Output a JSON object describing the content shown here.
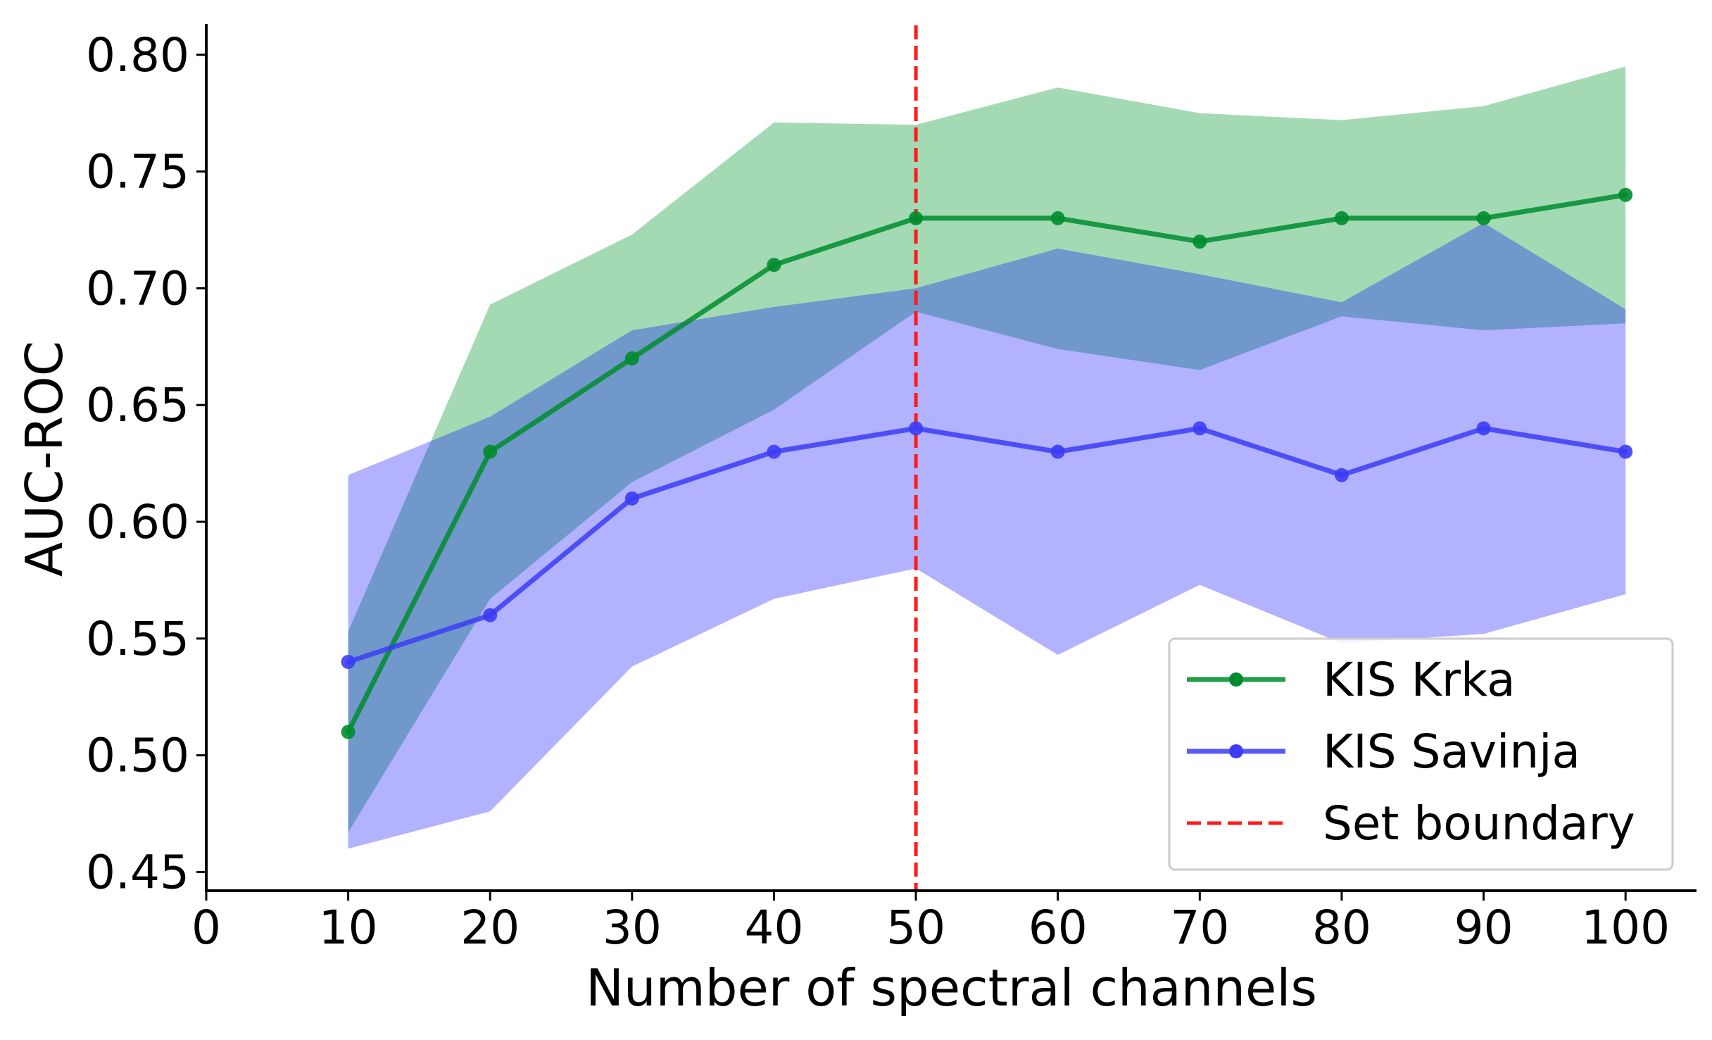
{
  "chart_data": {
    "type": "line",
    "title": "",
    "xlabel": "Number of spectral channels",
    "ylabel": "AUC-ROC",
    "xlim": [
      0,
      105
    ],
    "ylim": [
      0.442,
      0.812
    ],
    "xticks": [
      0,
      10,
      20,
      30,
      40,
      50,
      60,
      70,
      80,
      90,
      100
    ],
    "xtick_labels": [
      "0",
      "10",
      "20",
      "30",
      "40",
      "50",
      "60",
      "70",
      "80",
      "90",
      "100"
    ],
    "yticks": [
      0.45,
      0.5,
      0.55,
      0.6,
      0.65,
      0.7,
      0.75,
      0.8
    ],
    "ytick_labels": [
      "0.45",
      "0.50",
      "0.55",
      "0.60",
      "0.65",
      "0.70",
      "0.75",
      "0.80"
    ],
    "x": [
      10,
      20,
      30,
      40,
      50,
      60,
      70,
      80,
      90,
      100
    ],
    "series": [
      {
        "name": "KIS Krka",
        "color": "#008c2e",
        "band_color": "#a3dab4",
        "values": [
          0.51,
          0.63,
          0.67,
          0.71,
          0.73,
          0.73,
          0.72,
          0.73,
          0.73,
          0.74
        ],
        "band_upper": [
          0.553,
          0.693,
          0.723,
          0.771,
          0.77,
          0.786,
          0.775,
          0.772,
          0.778,
          0.795
        ],
        "band_lower": [
          0.467,
          0.567,
          0.617,
          0.648,
          0.69,
          0.674,
          0.665,
          0.688,
          0.682,
          0.685
        ]
      },
      {
        "name": "KIS Savinja",
        "color": "#3c3cf5",
        "band_color": "#b2b2ff",
        "values": [
          0.54,
          0.56,
          0.61,
          0.63,
          0.64,
          0.63,
          0.64,
          0.62,
          0.64,
          0.63
        ],
        "band_upper": [
          0.62,
          0.645,
          0.682,
          0.692,
          0.7,
          0.717,
          0.706,
          0.694,
          0.728,
          0.691
        ],
        "band_lower": [
          0.46,
          0.476,
          0.538,
          0.567,
          0.58,
          0.543,
          0.573,
          0.548,
          0.552,
          0.569
        ]
      }
    ],
    "overlap_color": "#7098cb",
    "vline": {
      "x": 50,
      "label": "Set boundary",
      "color": "#ff1a1a"
    },
    "legend": {
      "position": "lower-right",
      "items": [
        "KIS Krka",
        "KIS Savinja",
        "Set boundary"
      ]
    },
    "grid": false
  }
}
